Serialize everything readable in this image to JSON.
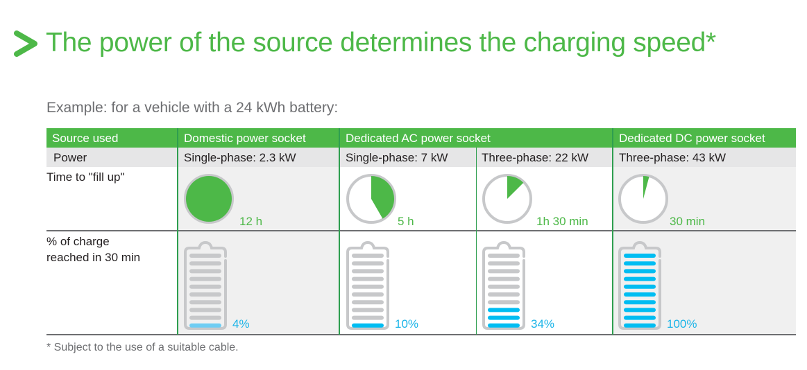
{
  "title": "The power of the source determines the charging speed*",
  "subtitle": "Example: for a vehicle with a 24 kWh battery:",
  "colors": {
    "green": "#4db848",
    "blue": "#00bdf2",
    "gray": "#c7c8ca"
  },
  "table": {
    "header": [
      "Source used",
      "Domestic power socket",
      "Dedicated AC power socket",
      "Dedicated DC power socket"
    ],
    "row_labels": {
      "power": "Power",
      "time": "Time to \"fill up\"",
      "charge_line1": "% of charge",
      "charge_line2": "reached in 30 min"
    },
    "columns": [
      {
        "power": "Single-phase: 2.3 kW",
        "time": "12 h",
        "time_fraction": 1.0,
        "charge": "4%",
        "charge_percent": 4
      },
      {
        "power": "Single-phase: 7 kW",
        "time": "5 h",
        "time_fraction": 0.4167,
        "charge": "10%",
        "charge_percent": 10
      },
      {
        "power": "Three-phase: 22 kW",
        "time": "1h 30 min",
        "time_fraction": 0.125,
        "charge": "34%",
        "charge_percent": 34
      },
      {
        "power": "Three-phase: 43 kW",
        "time": "30 min",
        "time_fraction": 0.0417,
        "charge": "100%",
        "charge_percent": 100
      }
    ]
  },
  "footnote": "* Subject to the use of a suitable cable."
}
